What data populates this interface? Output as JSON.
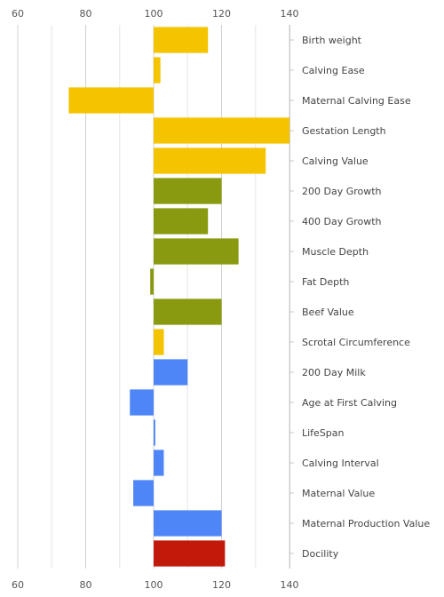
{
  "chart_data": {
    "type": "bar",
    "orientation": "horizontal",
    "baseline": 100,
    "xlim": [
      60,
      140
    ],
    "ticks": [
      60,
      80,
      100,
      120,
      140
    ],
    "grid": true,
    "categories": [
      {
        "label": "Birth weight",
        "value": 116,
        "color": "#f5c400"
      },
      {
        "label": "Calving Ease",
        "value": 102,
        "color": "#f5c400"
      },
      {
        "label": "Maternal Calving Ease",
        "value": 75,
        "color": "#f5c400"
      },
      {
        "label": "Gestation Length",
        "value": 140,
        "color": "#f5c400"
      },
      {
        "label": "Calving Value",
        "value": 133,
        "color": "#f5c400"
      },
      {
        "label": "200 Day Growth",
        "value": 120,
        "color": "#8a9a10"
      },
      {
        "label": "400 Day Growth",
        "value": 116,
        "color": "#8a9a10"
      },
      {
        "label": "Muscle Depth",
        "value": 125,
        "color": "#8a9a10"
      },
      {
        "label": "Fat Depth",
        "value": 99,
        "color": "#8a9a10"
      },
      {
        "label": "Beef Value",
        "value": 120,
        "color": "#8a9a10"
      },
      {
        "label": "Scrotal Circumference",
        "value": 103,
        "color": "#f5c400"
      },
      {
        "label": "200 Day Milk",
        "value": 110,
        "color": "#4f86f7"
      },
      {
        "label": "Age at First Calving",
        "value": 93,
        "color": "#4f86f7"
      },
      {
        "label": "LifeSpan",
        "value": 100.5,
        "color": "#4f86f7"
      },
      {
        "label": "Calving Interval",
        "value": 103,
        "color": "#4f86f7"
      },
      {
        "label": "Maternal Value",
        "value": 94,
        "color": "#4f86f7"
      },
      {
        "label": "Maternal Production Value",
        "value": 120,
        "color": "#4f86f7"
      },
      {
        "label": "Docility",
        "value": 121,
        "color": "#c21a0a"
      }
    ]
  }
}
